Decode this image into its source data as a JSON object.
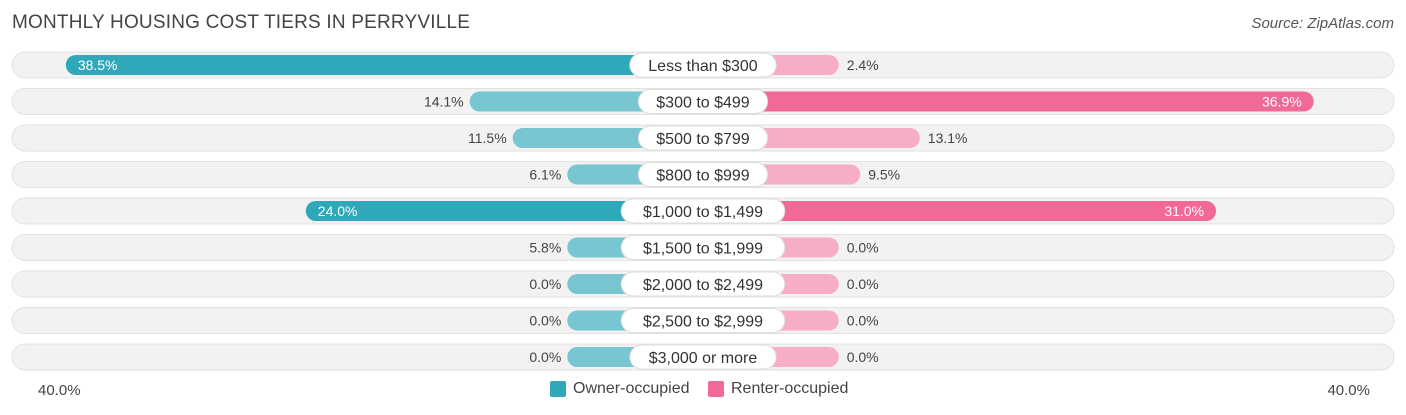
{
  "header": {
    "title": "MONTHLY HOUSING COST TIERS IN PERRYVILLE",
    "source": "Source: ZipAtlas.com"
  },
  "axis": {
    "left_label": "40.0%",
    "right_label": "40.0%"
  },
  "legend": {
    "owner": {
      "label": "Owner-occupied",
      "color": "#2fa8ba"
    },
    "renter": {
      "label": "Renter-occupied",
      "color": "#f06a95"
    }
  },
  "chart_data": {
    "type": "bar",
    "orientation": "horizontal-diverging",
    "title": "MONTHLY HOUSING COST TIERS IN PERRYVILLE",
    "xlim": [
      -40,
      40
    ],
    "categories": [
      "Less than $300",
      "$300 to $499",
      "$500 to $799",
      "$800 to $999",
      "$1,000 to $1,499",
      "$1,500 to $1,999",
      "$2,000 to $2,499",
      "$2,500 to $2,999",
      "$3,000 or more"
    ],
    "series": [
      {
        "name": "Owner-occupied",
        "side": "left",
        "color": "#2fa8ba",
        "values": [
          38.5,
          14.1,
          11.5,
          6.1,
          24.0,
          5.8,
          0.0,
          0.0,
          0.0
        ],
        "labels": [
          "38.5%",
          "14.1%",
          "11.5%",
          "6.1%",
          "24.0%",
          "5.8%",
          "0.0%",
          "0.0%",
          "0.0%"
        ]
      },
      {
        "name": "Renter-occupied",
        "side": "right",
        "color": "#f06a95",
        "values": [
          2.4,
          36.9,
          13.1,
          9.5,
          31.0,
          0.0,
          0.0,
          0.0,
          0.0
        ],
        "labels": [
          "2.4%",
          "36.9%",
          "13.1%",
          "9.5%",
          "31.0%",
          "0.0%",
          "0.0%",
          "0.0%",
          "0.0%"
        ]
      }
    ]
  }
}
